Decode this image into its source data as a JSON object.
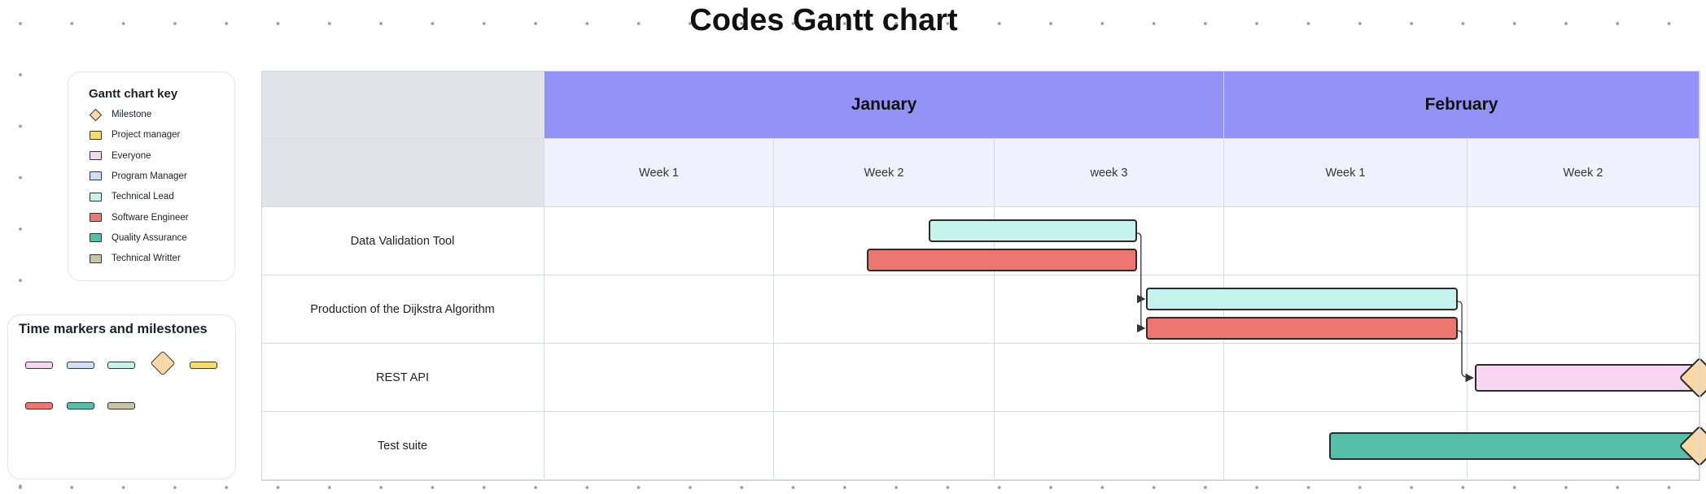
{
  "title": "Codes Gantt chart",
  "key": {
    "title": "Gantt chart key",
    "items": [
      {
        "label": "Milestone",
        "color": "#f8d9a6",
        "shape": "diamond",
        "name": "milestone"
      },
      {
        "label": "Project manager",
        "color": "#f5dc6b",
        "shape": "swatch",
        "name": "project-manager"
      },
      {
        "label": "Everyone",
        "color": "#f6d6f1",
        "shape": "swatch",
        "name": "everyone"
      },
      {
        "label": "Program Manager",
        "color": "#cfe0f7",
        "shape": "swatch",
        "name": "program-manager"
      },
      {
        "label": "Technical Lead",
        "color": "#c5f2ec",
        "shape": "swatch",
        "name": "technical-lead"
      },
      {
        "label": "Software Engineer",
        "color": "#ee7671",
        "shape": "swatch",
        "name": "software-engineer"
      },
      {
        "label": "Quality Assurance",
        "color": "#56bfa9",
        "shape": "swatch",
        "name": "quality-assurance"
      },
      {
        "label": "Technical Writter",
        "color": "#cbc3a8",
        "shape": "swatch",
        "name": "technical-writter"
      }
    ]
  },
  "markers": {
    "title": "Time markers and milestones",
    "items": [
      {
        "name": "everyone",
        "color": "#f6d6f1",
        "shape": "bar"
      },
      {
        "name": "program-manager",
        "color": "#cfe0f7",
        "shape": "bar"
      },
      {
        "name": "technical-lead",
        "color": "#c5f2ec",
        "shape": "bar"
      },
      {
        "name": "milestone",
        "color": "#f8d9a6",
        "shape": "diamond"
      },
      {
        "name": "project-manager",
        "color": "#f5dc6b",
        "shape": "bar"
      },
      {
        "name": "software-engineer",
        "color": "#ee7671",
        "shape": "bar"
      },
      {
        "name": "quality-assurance",
        "color": "#56bfa9",
        "shape": "bar"
      },
      {
        "name": "technical-writter",
        "color": "#cbc3a8",
        "shape": "bar"
      }
    ]
  },
  "gantt": {
    "months": [
      {
        "label": "January",
        "weeks": 3
      },
      {
        "label": "February",
        "weeks": 2
      }
    ],
    "weeks": [
      "Week 1",
      "Week 2",
      "week 3",
      "Week 1",
      "Week 2"
    ],
    "tasks": [
      {
        "label": "Data Validation Tool"
      },
      {
        "label": "Production of the Dijkstra Algorithm"
      },
      {
        "label": "REST API"
      },
      {
        "label": "Test suite"
      }
    ],
    "bars": [
      {
        "task": 0,
        "role": "technical-lead",
        "color": "#c5f2ec",
        "start_week": 1.7,
        "end_week": 2.62
      },
      {
        "task": 0,
        "role": "software-engineer",
        "color": "#ee7671",
        "start_week": 1.42,
        "end_week": 2.62
      },
      {
        "task": 1,
        "role": "technical-lead",
        "color": "#c5f2ec",
        "start_week": 2.66,
        "end_week": 3.96
      },
      {
        "task": 1,
        "role": "software-engineer",
        "color": "#ee7671",
        "start_week": 2.66,
        "end_week": 3.96
      },
      {
        "task": 2,
        "role": "everyone",
        "color": "#f6d6f1",
        "start_week": 4.03,
        "end_week": 5.0
      },
      {
        "task": 3,
        "role": "quality-assurance",
        "color": "#56bfa9",
        "start_week": 3.43,
        "end_week": 5.0
      }
    ],
    "milestones": [
      {
        "task": 2,
        "week": 5.0,
        "color": "#f8d9a6"
      },
      {
        "task": 3,
        "week": 5.0,
        "color": "#f8d9a6"
      }
    ],
    "dependencies": [
      {
        "from_bar": 0,
        "to_bar": 2
      },
      {
        "from_bar": 0,
        "to_bar": 3
      },
      {
        "from_bar": 2,
        "to_bar": 4
      },
      {
        "from_bar": 3,
        "to_bar": 4
      }
    ]
  }
}
